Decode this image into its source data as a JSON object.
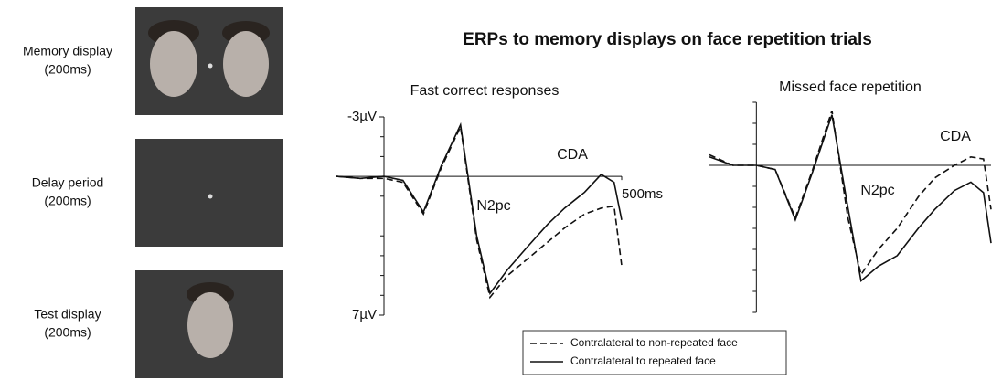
{
  "figure": {
    "title": "ERPs to memory displays on face repetition trials",
    "stimuli": [
      {
        "label": "Memory display",
        "duration": "(200ms)"
      },
      {
        "label": "Delay period",
        "duration": "(200ms)"
      },
      {
        "label": "Test display",
        "duration": "(200ms)"
      }
    ]
  },
  "chart_data": [
    {
      "type": "line",
      "title": "Fast correct responses",
      "x": [
        -100,
        -50,
        0,
        40,
        83,
        120,
        161,
        195,
        223,
        260,
        300,
        345,
        380,
        422,
        457,
        484,
        500
      ],
      "series": [
        {
          "name": "Contralateral to non-repeated face",
          "color": "#111111",
          "dash": true,
          "values": [
            0,
            0.1,
            0.1,
            0.3,
            1.9,
            -0.4,
            -2.5,
            3.2,
            6.1,
            5.0,
            4.2,
            3.3,
            2.6,
            1.9,
            1.6,
            1.5,
            4.5
          ]
        },
        {
          "name": "Contralateral to repeated face",
          "color": "#111111",
          "dash": false,
          "values": [
            0,
            0.1,
            0,
            0.2,
            1.8,
            -0.5,
            -2.6,
            3.0,
            5.9,
            4.7,
            3.6,
            2.4,
            1.6,
            0.8,
            -0.1,
            0.3,
            2.2
          ]
        }
      ],
      "xlim": [
        -100,
        500
      ],
      "ylim": [
        -3,
        7
      ],
      "y_inverted": true,
      "yticks": [
        {
          "value": -3,
          "label": "-3µV"
        },
        {
          "value": 7,
          "label": "7µV"
        }
      ],
      "minor_yticks": [
        -2,
        -1,
        1,
        2,
        3,
        4,
        5,
        6
      ],
      "xticks": [
        {
          "value": 500,
          "label": "500ms"
        }
      ],
      "annotations": [
        "N2pc",
        "CDA"
      ]
    },
    {
      "type": "line",
      "title": "Missed face repetition",
      "x": [
        -100,
        -50,
        0,
        40,
        83,
        120,
        161,
        195,
        223,
        260,
        300,
        345,
        380,
        422,
        457,
        484,
        500
      ],
      "series": [
        {
          "color": "#111111",
          "dash": true,
          "values": [
            -0.5,
            0,
            0,
            0.2,
            2.5,
            0.2,
            -2.6,
            2.5,
            5.2,
            4.0,
            3.0,
            1.5,
            0.6,
            0,
            -0.4,
            -0.3,
            2.1
          ]
        },
        {
          "color": "#111111",
          "dash": false,
          "values": [
            -0.4,
            0,
            0,
            0.2,
            2.6,
            0.3,
            -2.4,
            2.0,
            5.5,
            4.8,
            4.3,
            3.0,
            2.1,
            1.2,
            0.8,
            1.3,
            3.7
          ]
        }
      ],
      "xlim": [
        -100,
        500
      ],
      "ylim": [
        -3,
        7
      ],
      "y_inverted": true,
      "minor_yticks": [
        -3,
        -2,
        -1,
        1,
        2,
        3,
        4,
        5,
        6,
        7
      ],
      "annotations": [
        "N2pc",
        "CDA"
      ]
    }
  ]
}
